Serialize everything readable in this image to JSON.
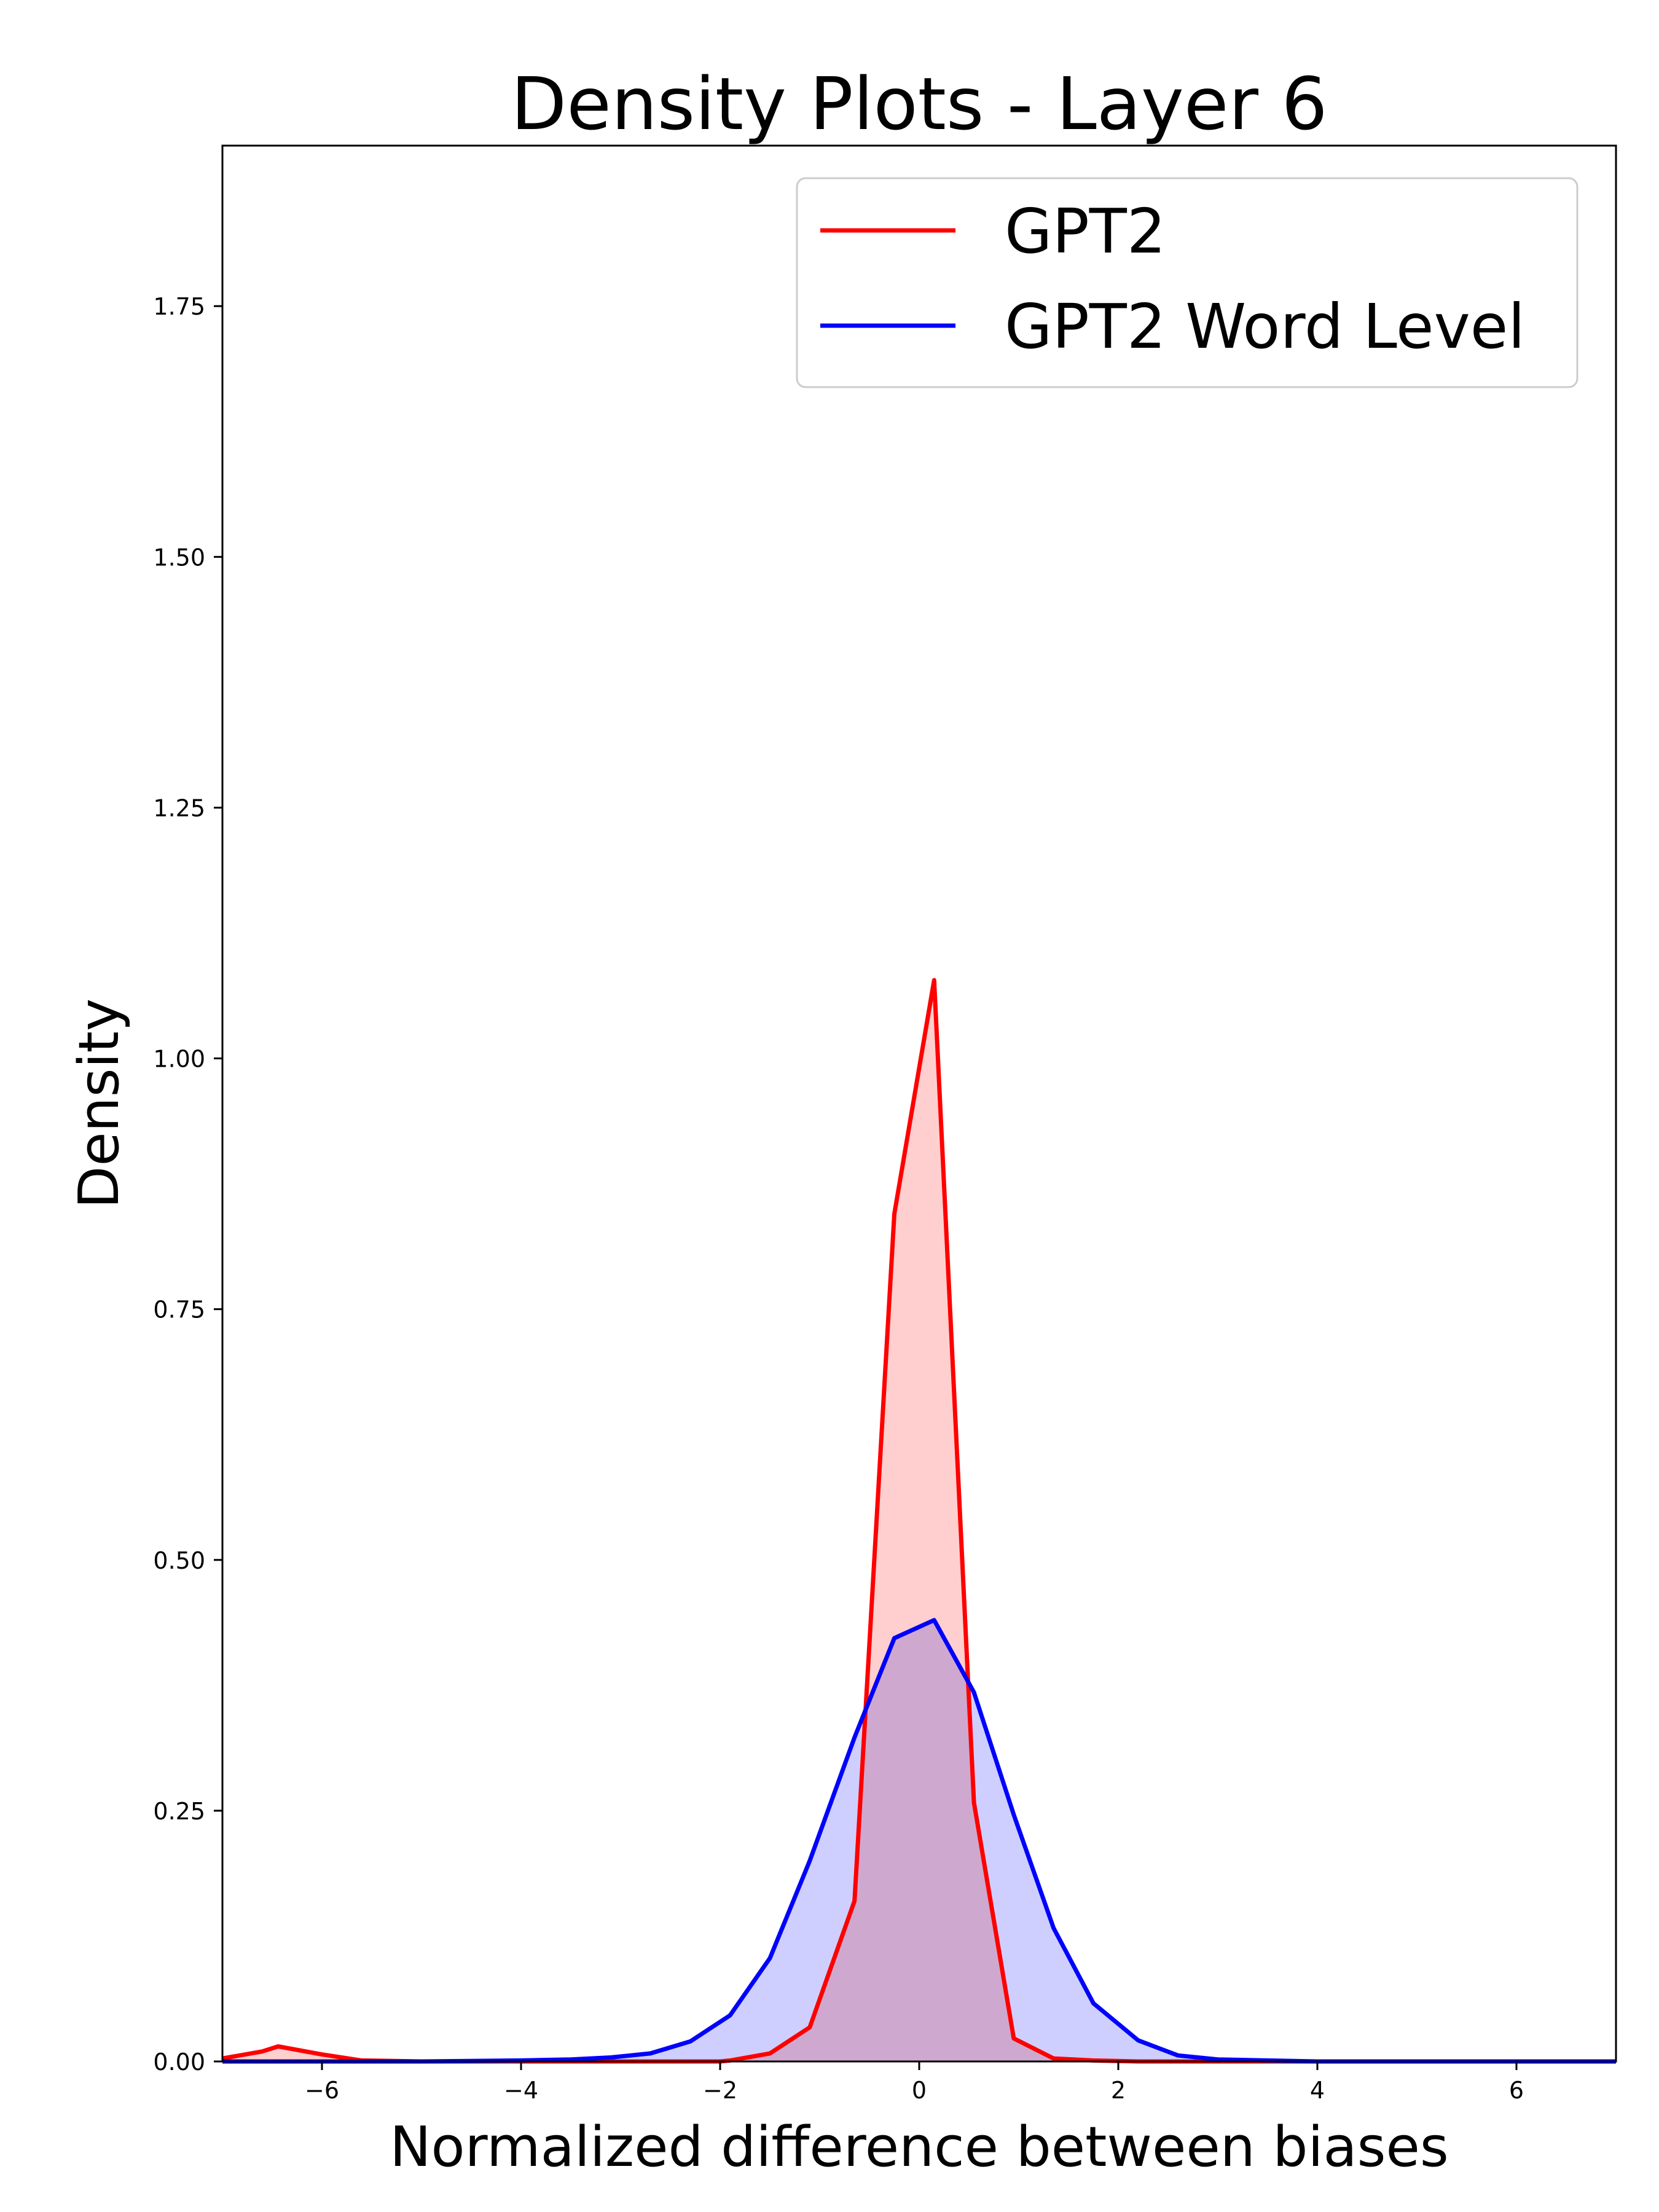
{
  "chart_data": {
    "type": "area",
    "title": "Density Plots - Layer 6",
    "xlabel": "Normalized difference between biases",
    "ylabel": "Density",
    "xlim": [
      -7,
      7
    ],
    "ylim": [
      0,
      1.91
    ],
    "xticks": [
      -6,
      -4,
      -2,
      0,
      2,
      4,
      6
    ],
    "xtick_labels": [
      "−6",
      "−4",
      "−2",
      "0",
      "2",
      "4",
      "6"
    ],
    "yticks": [
      0,
      0.25,
      0.5,
      0.75,
      1.0,
      1.25,
      1.5,
      1.75
    ],
    "ytick_labels": [
      "0.00",
      "0.25",
      "0.50",
      "0.75",
      "1.00",
      "1.25",
      "1.50",
      "1.75"
    ],
    "grid": false,
    "legend_position": "top-right",
    "series": [
      {
        "name": "GPT2",
        "color": "#ff0000",
        "fill_color": "#ffcccc",
        "x": [
          -7.0,
          -6.6,
          -6.44,
          -6.0,
          -5.6,
          -5.0,
          -4.0,
          -3.0,
          -2.0,
          -1.9,
          -1.5,
          -1.1,
          -0.65,
          -0.25,
          0.15,
          0.55,
          0.95,
          1.35,
          1.75,
          2.2,
          3.0,
          4.0,
          5.0,
          6.0,
          7.0
        ],
        "y": [
          0.003,
          0.01,
          0.015,
          0.007,
          0.001,
          0.0,
          0.0,
          0.0,
          0.0,
          0.001,
          0.008,
          0.034,
          0.16,
          0.845,
          1.078,
          0.258,
          0.023,
          0.003,
          0.001,
          0.0,
          0.0,
          0.0,
          0.0,
          0.0,
          0.0
        ]
      },
      {
        "name": "GPT2 Word Level",
        "color": "#0000ff",
        "fill_color": "#ccccff",
        "x": [
          -7.0,
          -6.0,
          -5.0,
          -4.0,
          -3.5,
          -3.1,
          -2.7,
          -2.3,
          -1.9,
          -1.5,
          -1.1,
          -0.65,
          -0.25,
          0.15,
          0.55,
          0.95,
          1.35,
          1.75,
          2.2,
          2.6,
          3.0,
          3.5,
          4.0,
          5.0,
          6.0,
          7.0
        ],
        "y": [
          0.0,
          0.0,
          0.0,
          0.001,
          0.002,
          0.004,
          0.008,
          0.02,
          0.046,
          0.103,
          0.2,
          0.323,
          0.422,
          0.44,
          0.368,
          0.246,
          0.133,
          0.058,
          0.021,
          0.006,
          0.002,
          0.001,
          0.0,
          0.0,
          0.0,
          0.0
        ]
      }
    ]
  }
}
